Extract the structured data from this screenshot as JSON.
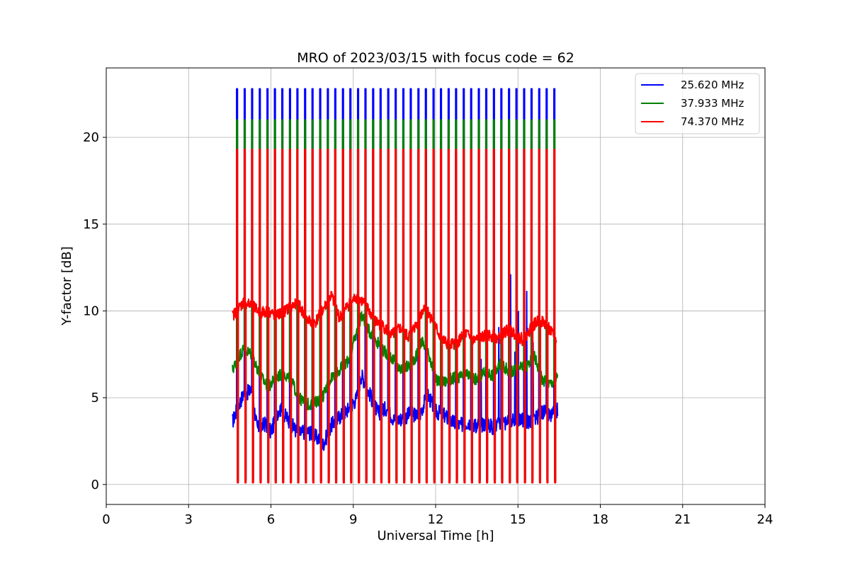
{
  "chart_data": {
    "type": "line",
    "title": "MRO of 2023/03/15 with focus code = 62",
    "xlabel": "Universal Time [h]",
    "ylabel": "Y-factor [dB]",
    "xlim": [
      0,
      24
    ],
    "ylim": [
      -1.15,
      24.0
    ],
    "x_ticks": [
      0,
      3,
      6,
      9,
      12,
      15,
      18,
      21,
      24
    ],
    "y_ticks": [
      0,
      5,
      10,
      15,
      20
    ],
    "grid": true,
    "legend_position": "top-right",
    "spike_times": [
      4.75,
      5.03,
      5.3,
      5.58,
      5.86,
      6.13,
      6.4,
      6.68,
      6.95,
      7.23,
      7.5,
      7.78,
      8.06,
      8.33,
      8.61,
      8.88,
      9.16,
      9.43,
      9.71,
      9.98,
      10.26,
      10.53,
      10.81,
      11.08,
      11.36,
      11.63,
      11.91,
      12.18,
      12.46,
      12.73,
      13.01,
      13.28,
      13.56,
      13.83,
      14.11,
      14.38,
      14.66,
      14.93,
      15.21,
      15.48,
      15.76,
      16.03,
      16.31
    ],
    "series": [
      {
        "name": "25.620 MHz",
        "color": "#0000ff",
        "spike_peak": 22.8,
        "spike_trough": 0.3,
        "baseline": [
          [
            4.6,
            3.6
          ],
          [
            4.8,
            4.5
          ],
          [
            5.0,
            5.2
          ],
          [
            5.3,
            5.4
          ],
          [
            5.5,
            3.2
          ],
          [
            5.8,
            3.5
          ],
          [
            6.0,
            3.0
          ],
          [
            6.3,
            4.4
          ],
          [
            6.6,
            3.8
          ],
          [
            7.0,
            2.9
          ],
          [
            7.3,
            3.1
          ],
          [
            7.6,
            2.8
          ],
          [
            7.9,
            2.3
          ],
          [
            8.2,
            3.4
          ],
          [
            8.5,
            3.9
          ],
          [
            8.8,
            4.3
          ],
          [
            9.1,
            4.9
          ],
          [
            9.3,
            6.3
          ],
          [
            9.6,
            5.2
          ],
          [
            9.9,
            4.1
          ],
          [
            10.2,
            4.4
          ],
          [
            10.5,
            3.7
          ],
          [
            10.8,
            3.8
          ],
          [
            11.1,
            4.1
          ],
          [
            11.4,
            3.9
          ],
          [
            11.7,
            5.2
          ],
          [
            12.0,
            4.2
          ],
          [
            12.3,
            4.0
          ],
          [
            12.6,
            3.6
          ],
          [
            12.9,
            3.4
          ],
          [
            13.2,
            3.6
          ],
          [
            13.5,
            3.4
          ],
          [
            13.8,
            3.5
          ],
          [
            14.1,
            3.3
          ],
          [
            14.4,
            3.6
          ],
          [
            14.7,
            3.5
          ],
          [
            15.0,
            3.8
          ],
          [
            15.3,
            3.6
          ],
          [
            15.6,
            3.7
          ],
          [
            15.9,
            4.2
          ],
          [
            16.2,
            3.9
          ],
          [
            16.45,
            4.3
          ]
        ]
      },
      {
        "name": "37.933 MHz",
        "color": "#008000",
        "spike_peak": 21.0,
        "spike_trough": 0.2,
        "baseline": [
          [
            4.6,
            6.6
          ],
          [
            4.8,
            7.3
          ],
          [
            5.0,
            7.8
          ],
          [
            5.3,
            7.5
          ],
          [
            5.6,
            6.3
          ],
          [
            5.9,
            5.6
          ],
          [
            6.2,
            6.2
          ],
          [
            6.5,
            6.4
          ],
          [
            6.8,
            5.8
          ],
          [
            7.0,
            5.0
          ],
          [
            7.3,
            4.6
          ],
          [
            7.6,
            4.7
          ],
          [
            7.9,
            5.1
          ],
          [
            8.2,
            6.2
          ],
          [
            8.5,
            6.6
          ],
          [
            8.8,
            7.1
          ],
          [
            9.1,
            8.6
          ],
          [
            9.3,
            9.8
          ],
          [
            9.5,
            9.0
          ],
          [
            9.8,
            8.4
          ],
          [
            10.1,
            7.7
          ],
          [
            10.4,
            7.3
          ],
          [
            10.7,
            6.6
          ],
          [
            11.0,
            6.8
          ],
          [
            11.3,
            7.4
          ],
          [
            11.5,
            8.3
          ],
          [
            11.8,
            7.3
          ],
          [
            12.0,
            6.0
          ],
          [
            12.3,
            5.9
          ],
          [
            12.6,
            6.1
          ],
          [
            12.9,
            6.2
          ],
          [
            13.2,
            6.3
          ],
          [
            13.5,
            6.0
          ],
          [
            13.8,
            6.5
          ],
          [
            14.1,
            6.3
          ],
          [
            14.4,
            7.0
          ],
          [
            14.7,
            6.4
          ],
          [
            15.0,
            6.7
          ],
          [
            15.3,
            6.8
          ],
          [
            15.6,
            7.4
          ],
          [
            15.9,
            6.0
          ],
          [
            16.2,
            5.8
          ],
          [
            16.45,
            6.2
          ]
        ]
      },
      {
        "name": "74.370 MHz",
        "color": "#ff0000",
        "spike_peak": 19.3,
        "spike_trough": 0.1,
        "baseline": [
          [
            4.6,
            9.7
          ],
          [
            4.8,
            10.1
          ],
          [
            5.0,
            10.5
          ],
          [
            5.3,
            10.3
          ],
          [
            5.6,
            9.9
          ],
          [
            5.9,
            10.0
          ],
          [
            6.2,
            9.7
          ],
          [
            6.5,
            10.0
          ],
          [
            6.8,
            10.3
          ],
          [
            7.0,
            10.4
          ],
          [
            7.3,
            9.5
          ],
          [
            7.6,
            9.3
          ],
          [
            7.9,
            10.1
          ],
          [
            8.2,
            10.9
          ],
          [
            8.5,
            9.6
          ],
          [
            8.8,
            10.3
          ],
          [
            9.1,
            10.8
          ],
          [
            9.3,
            10.6
          ],
          [
            9.5,
            10.2
          ],
          [
            9.8,
            9.4
          ],
          [
            10.1,
            9.1
          ],
          [
            10.4,
            8.6
          ],
          [
            10.7,
            9.0
          ],
          [
            11.0,
            8.5
          ],
          [
            11.3,
            9.2
          ],
          [
            11.6,
            10.3
          ],
          [
            11.9,
            9.4
          ],
          [
            12.2,
            8.4
          ],
          [
            12.5,
            8.0
          ],
          [
            12.8,
            8.2
          ],
          [
            13.1,
            8.7
          ],
          [
            13.4,
            8.3
          ],
          [
            13.7,
            8.5
          ],
          [
            14.0,
            8.6
          ],
          [
            14.3,
            8.4
          ],
          [
            14.6,
            8.9
          ],
          [
            14.9,
            8.7
          ],
          [
            15.2,
            8.3
          ],
          [
            15.5,
            9.1
          ],
          [
            15.8,
            9.5
          ],
          [
            16.1,
            9.1
          ],
          [
            16.4,
            8.2
          ]
        ]
      }
    ]
  }
}
